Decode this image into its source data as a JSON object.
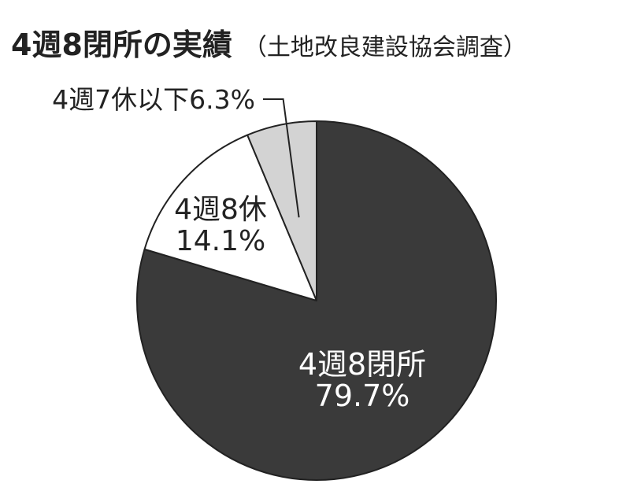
{
  "chart_data": {
    "type": "pie",
    "title": "4週8閉所の実績",
    "subtitle": "（土地改良建設協会調査）",
    "slices": [
      {
        "label": "4週8閉所",
        "value": 79.7,
        "value_label": "79.7%",
        "color": "#3a3a3a",
        "text_color": "#ffffff"
      },
      {
        "label": "4週8休",
        "value": 14.1,
        "value_label": "14.1%",
        "color": "#ffffff",
        "text_color": "#222222"
      },
      {
        "label": "4週7休以下",
        "value": 6.3,
        "value_label": "6.3%",
        "color": "#d3d3d3",
        "text_color": "#222222"
      }
    ],
    "start": "top",
    "direction": "clockwise"
  }
}
